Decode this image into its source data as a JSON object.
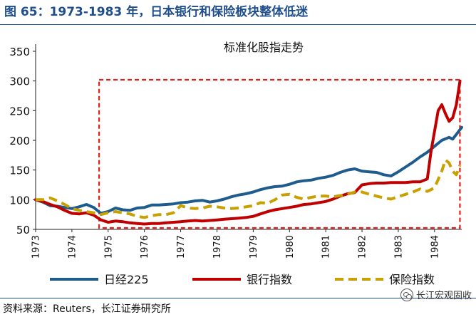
{
  "figure_title": "图 65：1973-1983 年，日本银行和保险板块整体低迷",
  "source": "资料来源：Reuters，长江证券研究所",
  "watermark": "长江宏观固收",
  "watermark_icon": "wechat-icon",
  "chart_data": {
    "type": "line",
    "title": "标准化股指走势",
    "xlabel": "",
    "ylabel": "",
    "xlim": [
      1973,
      1984.75
    ],
    "ylim": [
      50,
      350
    ],
    "yticks": [
      50,
      100,
      150,
      200,
      250,
      300,
      350
    ],
    "xticks": [
      "1973",
      "1974",
      "1975",
      "1976",
      "1977",
      "1978",
      "1979",
      "1980",
      "1981",
      "1982",
      "1983",
      "1984"
    ],
    "legend_position": "bottom",
    "highlight_box": {
      "x_range": [
        1974.75,
        1984.7
      ],
      "y_range": [
        50,
        302
      ],
      "color": "#e0201b"
    },
    "series": [
      {
        "name": "日经225",
        "color": "#1f5c8e",
        "style": "solid",
        "points": [
          [
            1973.0,
            100
          ],
          [
            1973.2,
            96
          ],
          [
            1973.4,
            90
          ],
          [
            1973.6,
            89
          ],
          [
            1973.8,
            87
          ],
          [
            1974.0,
            85
          ],
          [
            1974.2,
            88
          ],
          [
            1974.4,
            92
          ],
          [
            1974.6,
            87
          ],
          [
            1974.8,
            77
          ],
          [
            1975.0,
            80
          ],
          [
            1975.2,
            86
          ],
          [
            1975.4,
            83
          ],
          [
            1975.6,
            82
          ],
          [
            1975.8,
            86
          ],
          [
            1976.0,
            87
          ],
          [
            1976.2,
            91
          ],
          [
            1976.4,
            91
          ],
          [
            1976.6,
            92
          ],
          [
            1976.8,
            93
          ],
          [
            1977.0,
            95
          ],
          [
            1977.2,
            96
          ],
          [
            1977.4,
            98
          ],
          [
            1977.6,
            99
          ],
          [
            1977.8,
            96
          ],
          [
            1978.0,
            98
          ],
          [
            1978.2,
            101
          ],
          [
            1978.4,
            105
          ],
          [
            1978.6,
            108
          ],
          [
            1978.8,
            110
          ],
          [
            1979.0,
            113
          ],
          [
            1979.2,
            117
          ],
          [
            1979.4,
            120
          ],
          [
            1979.6,
            122
          ],
          [
            1979.8,
            123
          ],
          [
            1980.0,
            126
          ],
          [
            1980.2,
            130
          ],
          [
            1980.4,
            132
          ],
          [
            1980.6,
            133
          ],
          [
            1980.8,
            136
          ],
          [
            1981.0,
            138
          ],
          [
            1981.2,
            141
          ],
          [
            1981.4,
            146
          ],
          [
            1981.6,
            150
          ],
          [
            1981.8,
            152
          ],
          [
            1982.0,
            148
          ],
          [
            1982.2,
            147
          ],
          [
            1982.4,
            146
          ],
          [
            1982.6,
            142
          ],
          [
            1982.8,
            140
          ],
          [
            1983.0,
            147
          ],
          [
            1983.2,
            155
          ],
          [
            1983.4,
            163
          ],
          [
            1983.6,
            172
          ],
          [
            1983.8,
            180
          ],
          [
            1984.0,
            190
          ],
          [
            1984.2,
            200
          ],
          [
            1984.4,
            205
          ],
          [
            1984.5,
            202
          ],
          [
            1984.6,
            210
          ],
          [
            1984.75,
            222
          ]
        ]
      },
      {
        "name": "银行指数",
        "color": "#c00000",
        "style": "solid",
        "points": [
          [
            1973.0,
            100
          ],
          [
            1973.2,
            97
          ],
          [
            1973.4,
            92
          ],
          [
            1973.6,
            88
          ],
          [
            1973.8,
            82
          ],
          [
            1974.0,
            77
          ],
          [
            1974.2,
            76
          ],
          [
            1974.4,
            78
          ],
          [
            1974.6,
            74
          ],
          [
            1974.8,
            66
          ],
          [
            1975.0,
            62
          ],
          [
            1975.2,
            64
          ],
          [
            1975.4,
            63
          ],
          [
            1975.6,
            61
          ],
          [
            1975.8,
            60
          ],
          [
            1976.0,
            59
          ],
          [
            1976.2,
            60
          ],
          [
            1976.4,
            60
          ],
          [
            1976.6,
            61
          ],
          [
            1976.8,
            62
          ],
          [
            1977.0,
            63
          ],
          [
            1977.2,
            64
          ],
          [
            1977.4,
            65
          ],
          [
            1977.6,
            64
          ],
          [
            1977.8,
            65
          ],
          [
            1978.0,
            66
          ],
          [
            1978.2,
            67
          ],
          [
            1978.4,
            68
          ],
          [
            1978.6,
            69
          ],
          [
            1978.8,
            70
          ],
          [
            1979.0,
            72
          ],
          [
            1979.2,
            76
          ],
          [
            1979.4,
            80
          ],
          [
            1979.6,
            83
          ],
          [
            1979.8,
            85
          ],
          [
            1980.0,
            87
          ],
          [
            1980.2,
            89
          ],
          [
            1980.4,
            92
          ],
          [
            1980.6,
            93
          ],
          [
            1980.8,
            95
          ],
          [
            1981.0,
            97
          ],
          [
            1981.2,
            101
          ],
          [
            1981.4,
            106
          ],
          [
            1981.6,
            110
          ],
          [
            1981.8,
            112
          ],
          [
            1982.0,
            125
          ],
          [
            1982.2,
            127
          ],
          [
            1982.4,
            128
          ],
          [
            1982.6,
            128
          ],
          [
            1982.8,
            129
          ],
          [
            1983.0,
            129
          ],
          [
            1983.2,
            129
          ],
          [
            1983.4,
            130
          ],
          [
            1983.6,
            130
          ],
          [
            1983.8,
            135
          ],
          [
            1983.9,
            180
          ],
          [
            1984.0,
            215
          ],
          [
            1984.1,
            250
          ],
          [
            1984.2,
            260
          ],
          [
            1984.3,
            245
          ],
          [
            1984.4,
            232
          ],
          [
            1984.5,
            238
          ],
          [
            1984.6,
            260
          ],
          [
            1984.7,
            300
          ]
        ]
      },
      {
        "name": "保险指数",
        "color": "#c8a000",
        "style": "dashed",
        "points": [
          [
            1973.0,
            100
          ],
          [
            1973.2,
            100
          ],
          [
            1973.4,
            103
          ],
          [
            1973.6,
            98
          ],
          [
            1973.8,
            92
          ],
          [
            1974.0,
            85
          ],
          [
            1974.2,
            82
          ],
          [
            1974.4,
            80
          ],
          [
            1974.6,
            78
          ],
          [
            1974.8,
            75
          ],
          [
            1975.0,
            78
          ],
          [
            1975.2,
            80
          ],
          [
            1975.4,
            78
          ],
          [
            1975.6,
            76
          ],
          [
            1975.8,
            72
          ],
          [
            1976.0,
            70
          ],
          [
            1976.2,
            73
          ],
          [
            1976.4,
            75
          ],
          [
            1976.6,
            75
          ],
          [
            1976.8,
            78
          ],
          [
            1977.0,
            90
          ],
          [
            1977.2,
            86
          ],
          [
            1977.4,
            85
          ],
          [
            1977.6,
            86
          ],
          [
            1977.8,
            89
          ],
          [
            1978.0,
            88
          ],
          [
            1978.2,
            86
          ],
          [
            1978.4,
            85
          ],
          [
            1978.6,
            86
          ],
          [
            1978.8,
            88
          ],
          [
            1979.0,
            90
          ],
          [
            1979.2,
            95
          ],
          [
            1979.4,
            94
          ],
          [
            1979.6,
            100
          ],
          [
            1979.8,
            108
          ],
          [
            1980.0,
            109
          ],
          [
            1980.2,
            104
          ],
          [
            1980.4,
            101
          ],
          [
            1980.6,
            104
          ],
          [
            1980.8,
            106
          ],
          [
            1981.0,
            106
          ],
          [
            1981.2,
            105
          ],
          [
            1981.4,
            107
          ],
          [
            1981.6,
            109
          ],
          [
            1981.8,
            113
          ],
          [
            1982.0,
            113
          ],
          [
            1982.2,
            109
          ],
          [
            1982.4,
            106
          ],
          [
            1982.6,
            103
          ],
          [
            1982.8,
            101
          ],
          [
            1983.0,
            105
          ],
          [
            1983.2,
            109
          ],
          [
            1983.4,
            113
          ],
          [
            1983.6,
            118
          ],
          [
            1983.8,
            114
          ],
          [
            1984.0,
            120
          ],
          [
            1984.2,
            148
          ],
          [
            1984.3,
            167
          ],
          [
            1984.4,
            162
          ],
          [
            1984.5,
            148
          ],
          [
            1984.6,
            142
          ],
          [
            1984.7,
            158
          ]
        ]
      }
    ]
  }
}
